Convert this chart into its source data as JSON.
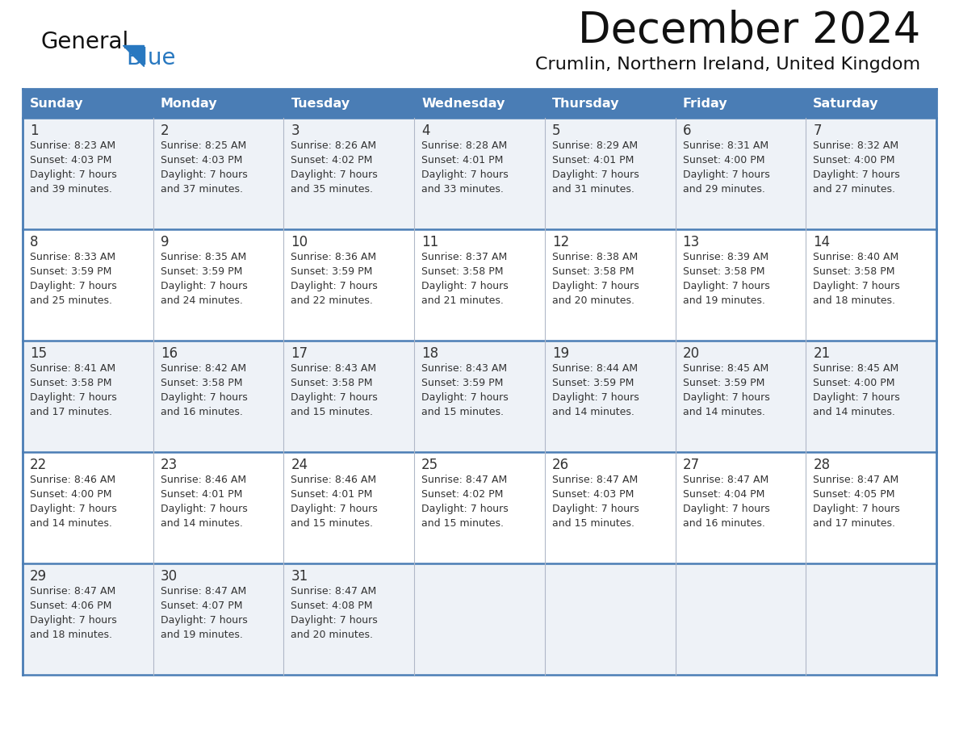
{
  "title": "December 2024",
  "subtitle": "Crumlin, Northern Ireland, United Kingdom",
  "header_color": "#4a7db5",
  "header_text_color": "#ffffff",
  "cell_bg_even": "#eef2f7",
  "cell_bg_odd": "#ffffff",
  "row_border_color": "#4a7db5",
  "col_border_color": "#b0b8c8",
  "day_names": [
    "Sunday",
    "Monday",
    "Tuesday",
    "Wednesday",
    "Thursday",
    "Friday",
    "Saturday"
  ],
  "days": [
    {
      "day": 1,
      "col": 0,
      "row": 0,
      "sunrise": "8:23 AM",
      "sunset": "4:03 PM",
      "daylight": "7 hours and 39 minutes."
    },
    {
      "day": 2,
      "col": 1,
      "row": 0,
      "sunrise": "8:25 AM",
      "sunset": "4:03 PM",
      "daylight": "7 hours and 37 minutes."
    },
    {
      "day": 3,
      "col": 2,
      "row": 0,
      "sunrise": "8:26 AM",
      "sunset": "4:02 PM",
      "daylight": "7 hours and 35 minutes."
    },
    {
      "day": 4,
      "col": 3,
      "row": 0,
      "sunrise": "8:28 AM",
      "sunset": "4:01 PM",
      "daylight": "7 hours and 33 minutes."
    },
    {
      "day": 5,
      "col": 4,
      "row": 0,
      "sunrise": "8:29 AM",
      "sunset": "4:01 PM",
      "daylight": "7 hours and 31 minutes."
    },
    {
      "day": 6,
      "col": 5,
      "row": 0,
      "sunrise": "8:31 AM",
      "sunset": "4:00 PM",
      "daylight": "7 hours and 29 minutes."
    },
    {
      "day": 7,
      "col": 6,
      "row": 0,
      "sunrise": "8:32 AM",
      "sunset": "4:00 PM",
      "daylight": "7 hours and 27 minutes."
    },
    {
      "day": 8,
      "col": 0,
      "row": 1,
      "sunrise": "8:33 AM",
      "sunset": "3:59 PM",
      "daylight": "7 hours and 25 minutes."
    },
    {
      "day": 9,
      "col": 1,
      "row": 1,
      "sunrise": "8:35 AM",
      "sunset": "3:59 PM",
      "daylight": "7 hours and 24 minutes."
    },
    {
      "day": 10,
      "col": 2,
      "row": 1,
      "sunrise": "8:36 AM",
      "sunset": "3:59 PM",
      "daylight": "7 hours and 22 minutes."
    },
    {
      "day": 11,
      "col": 3,
      "row": 1,
      "sunrise": "8:37 AM",
      "sunset": "3:58 PM",
      "daylight": "7 hours and 21 minutes."
    },
    {
      "day": 12,
      "col": 4,
      "row": 1,
      "sunrise": "8:38 AM",
      "sunset": "3:58 PM",
      "daylight": "7 hours and 20 minutes."
    },
    {
      "day": 13,
      "col": 5,
      "row": 1,
      "sunrise": "8:39 AM",
      "sunset": "3:58 PM",
      "daylight": "7 hours and 19 minutes."
    },
    {
      "day": 14,
      "col": 6,
      "row": 1,
      "sunrise": "8:40 AM",
      "sunset": "3:58 PM",
      "daylight": "7 hours and 18 minutes."
    },
    {
      "day": 15,
      "col": 0,
      "row": 2,
      "sunrise": "8:41 AM",
      "sunset": "3:58 PM",
      "daylight": "7 hours and 17 minutes."
    },
    {
      "day": 16,
      "col": 1,
      "row": 2,
      "sunrise": "8:42 AM",
      "sunset": "3:58 PM",
      "daylight": "7 hours and 16 minutes."
    },
    {
      "day": 17,
      "col": 2,
      "row": 2,
      "sunrise": "8:43 AM",
      "sunset": "3:58 PM",
      "daylight": "7 hours and 15 minutes."
    },
    {
      "day": 18,
      "col": 3,
      "row": 2,
      "sunrise": "8:43 AM",
      "sunset": "3:59 PM",
      "daylight": "7 hours and 15 minutes."
    },
    {
      "day": 19,
      "col": 4,
      "row": 2,
      "sunrise": "8:44 AM",
      "sunset": "3:59 PM",
      "daylight": "7 hours and 14 minutes."
    },
    {
      "day": 20,
      "col": 5,
      "row": 2,
      "sunrise": "8:45 AM",
      "sunset": "3:59 PM",
      "daylight": "7 hours and 14 minutes."
    },
    {
      "day": 21,
      "col": 6,
      "row": 2,
      "sunrise": "8:45 AM",
      "sunset": "4:00 PM",
      "daylight": "7 hours and 14 minutes."
    },
    {
      "day": 22,
      "col": 0,
      "row": 3,
      "sunrise": "8:46 AM",
      "sunset": "4:00 PM",
      "daylight": "7 hours and 14 minutes."
    },
    {
      "day": 23,
      "col": 1,
      "row": 3,
      "sunrise": "8:46 AM",
      "sunset": "4:01 PM",
      "daylight": "7 hours and 14 minutes."
    },
    {
      "day": 24,
      "col": 2,
      "row": 3,
      "sunrise": "8:46 AM",
      "sunset": "4:01 PM",
      "daylight": "7 hours and 15 minutes."
    },
    {
      "day": 25,
      "col": 3,
      "row": 3,
      "sunrise": "8:47 AM",
      "sunset": "4:02 PM",
      "daylight": "7 hours and 15 minutes."
    },
    {
      "day": 26,
      "col": 4,
      "row": 3,
      "sunrise": "8:47 AM",
      "sunset": "4:03 PM",
      "daylight": "7 hours and 15 minutes."
    },
    {
      "day": 27,
      "col": 5,
      "row": 3,
      "sunrise": "8:47 AM",
      "sunset": "4:04 PM",
      "daylight": "7 hours and 16 minutes."
    },
    {
      "day": 28,
      "col": 6,
      "row": 3,
      "sunrise": "8:47 AM",
      "sunset": "4:05 PM",
      "daylight": "7 hours and 17 minutes."
    },
    {
      "day": 29,
      "col": 0,
      "row": 4,
      "sunrise": "8:47 AM",
      "sunset": "4:06 PM",
      "daylight": "7 hours and 18 minutes."
    },
    {
      "day": 30,
      "col": 1,
      "row": 4,
      "sunrise": "8:47 AM",
      "sunset": "4:07 PM",
      "daylight": "7 hours and 19 minutes."
    },
    {
      "day": 31,
      "col": 2,
      "row": 4,
      "sunrise": "8:47 AM",
      "sunset": "4:08 PM",
      "daylight": "7 hours and 20 minutes."
    }
  ],
  "logo_color_general": "#111111",
  "logo_color_blue": "#2878c0",
  "logo_triangle_color": "#2878c0",
  "title_color": "#111111",
  "subtitle_color": "#111111",
  "text_color": "#333333",
  "day_num_color": "#333333"
}
